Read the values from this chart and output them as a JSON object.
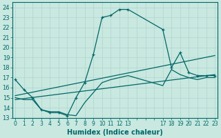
{
  "xlabel": "Humidex (Indice chaleur)",
  "bg_color": "#c8e8e0",
  "grid_color": "#b0d4cc",
  "line_color": "#006666",
  "series1": {
    "x": [
      0,
      1,
      2,
      3,
      4,
      5,
      6,
      7,
      8,
      9,
      10,
      11,
      12,
      13,
      17,
      18,
      19,
      20,
      21,
      22,
      23
    ],
    "y": [
      16.8,
      15.8,
      15.0,
      13.8,
      13.5,
      13.5,
      13.2,
      15.0,
      16.5,
      19.3,
      23.0,
      23.2,
      23.8,
      23.8,
      21.8,
      18.0,
      19.5,
      17.5,
      17.2,
      17.2,
      17.2
    ]
  },
  "series2": {
    "x": [
      0,
      1,
      2,
      3,
      4,
      5,
      6,
      7,
      8,
      9,
      10,
      11,
      12,
      13,
      17,
      18,
      19,
      20,
      21,
      22,
      23
    ],
    "y": [
      15.0,
      14.8,
      14.8,
      13.8,
      13.6,
      13.6,
      13.3,
      13.2,
      14.5,
      15.5,
      16.5,
      16.8,
      17.0,
      17.2,
      16.2,
      17.8,
      17.3,
      17.0,
      16.8,
      17.0,
      17.0
    ]
  },
  "line1": {
    "x": [
      0,
      23
    ],
    "y": [
      14.8,
      17.3
    ]
  },
  "line2": {
    "x": [
      0,
      23
    ],
    "y": [
      15.2,
      19.2
    ]
  },
  "xlim": [
    -0.3,
    23.3
  ],
  "ylim": [
    13,
    24.5
  ],
  "all_xticks": [
    0,
    1,
    2,
    3,
    4,
    5,
    6,
    7,
    8,
    9,
    10,
    11,
    12,
    13,
    14,
    15,
    16,
    17,
    18,
    19,
    20,
    21,
    22,
    23
  ],
  "labeled_xticks": [
    0,
    1,
    2,
    3,
    4,
    5,
    6,
    7,
    8,
    9,
    10,
    11,
    12,
    13,
    17,
    18,
    19,
    20,
    21,
    22,
    23
  ],
  "yticks": [
    13,
    14,
    15,
    16,
    17,
    18,
    19,
    20,
    21,
    22,
    23,
    24
  ]
}
